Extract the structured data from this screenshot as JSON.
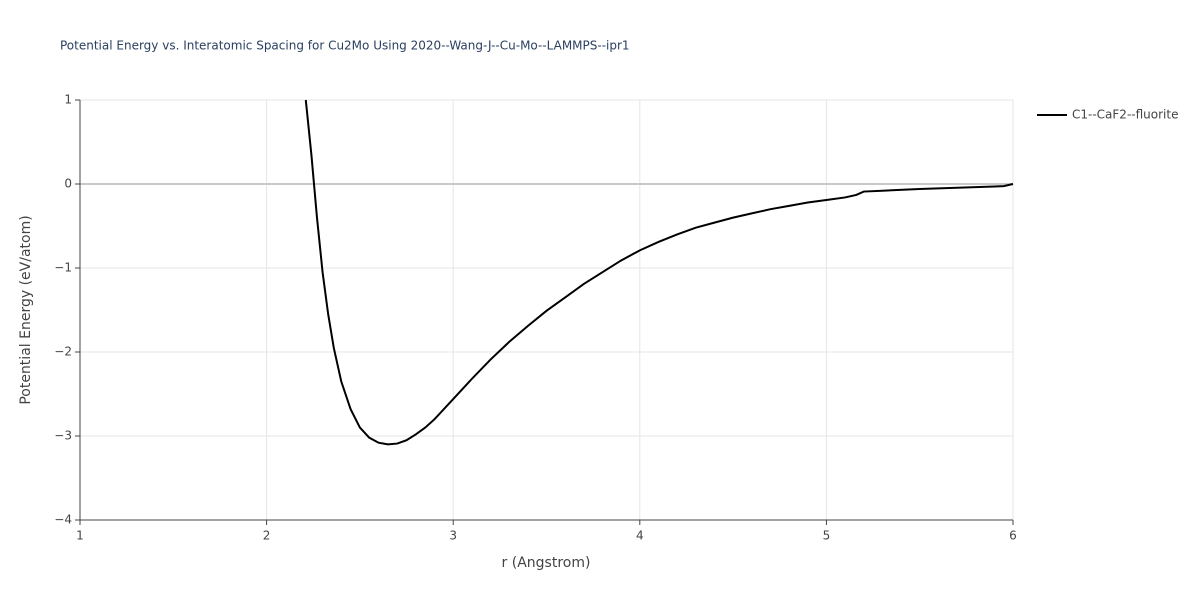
{
  "chart_data": {
    "type": "line",
    "title": "Potential Energy vs. Interatomic Spacing for Cu2Mo Using 2020--Wang-J--Cu-Mo--LAMMPS--ipr1",
    "x_label": "r (Angstrom)",
    "y_label": "Potential Energy (eV/atom)",
    "x": [
      2.21,
      2.24,
      2.27,
      2.3,
      2.33,
      2.36,
      2.4,
      2.45,
      2.5,
      2.55,
      2.6,
      2.65,
      2.7,
      2.75,
      2.8,
      2.85,
      2.9,
      3.0,
      3.1,
      3.2,
      3.3,
      3.4,
      3.5,
      3.6,
      3.7,
      3.8,
      3.9,
      4.0,
      4.1,
      4.2,
      4.3,
      4.4,
      4.5,
      4.6,
      4.7,
      4.8,
      4.9,
      5.0,
      5.1,
      5.16,
      5.2,
      5.3,
      5.5,
      5.7,
      5.9,
      5.95,
      6.0
    ],
    "series": [
      {
        "name": "C1--CaF2--fluorite",
        "color": "#000000",
        "values": [
          1.0,
          0.35,
          -0.4,
          -1.05,
          -1.55,
          -1.95,
          -2.35,
          -2.68,
          -2.9,
          -3.02,
          -3.08,
          -3.1,
          -3.09,
          -3.05,
          -2.98,
          -2.9,
          -2.8,
          -2.56,
          -2.32,
          -2.09,
          -1.88,
          -1.69,
          -1.51,
          -1.35,
          -1.19,
          -1.05,
          -0.91,
          -0.79,
          -0.69,
          -0.6,
          -0.52,
          -0.46,
          -0.4,
          -0.35,
          -0.3,
          -0.26,
          -0.22,
          -0.19,
          -0.16,
          -0.13,
          -0.09,
          -0.08,
          -0.06,
          -0.045,
          -0.03,
          -0.025,
          0
        ]
      }
    ],
    "xlim": [
      1,
      6
    ],
    "ylim": [
      -4,
      1
    ],
    "xticks": [
      1,
      2,
      3,
      4,
      5,
      6
    ],
    "yticks": [
      {
        "value": -4,
        "label": "−4"
      },
      {
        "value": -3,
        "label": "−3"
      },
      {
        "value": -2,
        "label": "−2"
      },
      {
        "value": -1,
        "label": "−1"
      },
      0,
      1
    ],
    "grid": true,
    "legend": "right"
  }
}
